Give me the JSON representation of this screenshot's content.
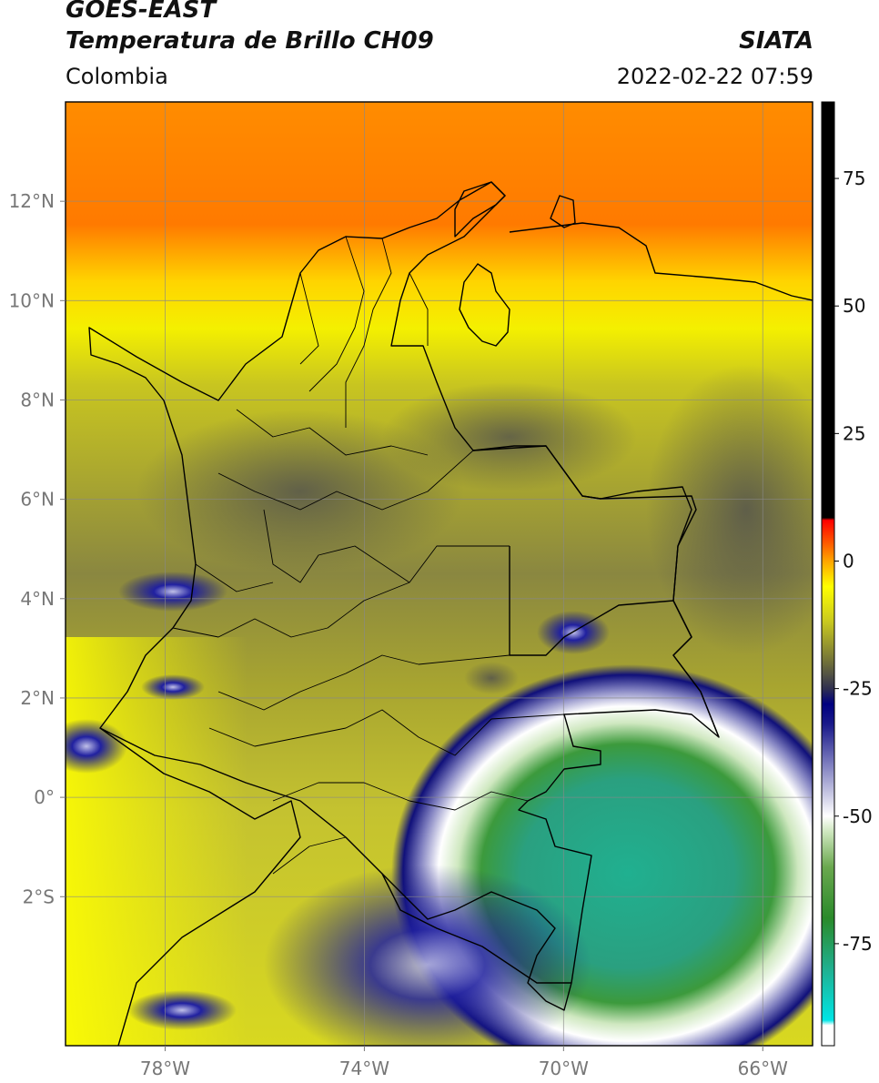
{
  "header": {
    "satellite": "GOES-EAST",
    "product": "Temperatura de Brillo CH09",
    "region": "Colombia",
    "brand": "SIATA",
    "datetime": "2022-02-22 07:59"
  },
  "map": {
    "lon_range": [
      -80,
      -65
    ],
    "lat_range": [
      -5,
      14
    ],
    "lon_ticks": [
      {
        "value": -78,
        "label": "78°W"
      },
      {
        "value": -74,
        "label": "74°W"
      },
      {
        "value": -70,
        "label": "70°W"
      },
      {
        "value": -66,
        "label": "66°W"
      }
    ],
    "lat_ticks": [
      {
        "value": 12,
        "label": "12°N"
      },
      {
        "value": 10,
        "label": "10°N"
      },
      {
        "value": 8,
        "label": "8°N"
      },
      {
        "value": 6,
        "label": "6°N"
      },
      {
        "value": 4,
        "label": "4°N"
      },
      {
        "value": 2,
        "label": "2°N"
      },
      {
        "value": 0,
        "label": "0°"
      },
      {
        "value": -2,
        "label": "2°S"
      }
    ],
    "gridlines": true
  },
  "colorbar": {
    "range": [
      -95,
      90
    ],
    "ticks": [
      {
        "value": 75,
        "label": "75"
      },
      {
        "value": 50,
        "label": "50"
      },
      {
        "value": 25,
        "label": "25"
      },
      {
        "value": 0,
        "label": "0"
      },
      {
        "value": -25,
        "label": "-25"
      },
      {
        "value": -50,
        "label": "-50"
      },
      {
        "value": -75,
        "label": "-75"
      }
    ],
    "stops": [
      {
        "value": -95,
        "color": "#ffffff"
      },
      {
        "value": -91,
        "color": "#ffffff"
      },
      {
        "value": -90,
        "color": "#00e5e5"
      },
      {
        "value": -80,
        "color": "#20b090"
      },
      {
        "value": -70,
        "color": "#2a8a2a"
      },
      {
        "value": -60,
        "color": "#6aa84f"
      },
      {
        "value": -53,
        "color": "#cfe8c0"
      },
      {
        "value": -50,
        "color": "#ffffff"
      },
      {
        "value": -40,
        "color": "#8080c0"
      },
      {
        "value": -32,
        "color": "#1a1a8a"
      },
      {
        "value": -28,
        "color": "#000080"
      },
      {
        "value": -25,
        "color": "#303050"
      },
      {
        "value": -20,
        "color": "#6e6e3a"
      },
      {
        "value": -12,
        "color": "#c8c820"
      },
      {
        "value": -5,
        "color": "#ffff00"
      },
      {
        "value": 0,
        "color": "#ffa500"
      },
      {
        "value": 4,
        "color": "#ff5000"
      },
      {
        "value": 8,
        "color": "#ff0000"
      },
      {
        "value": 8.5,
        "color": "#000000"
      },
      {
        "value": 90,
        "color": "#000000"
      }
    ]
  }
}
